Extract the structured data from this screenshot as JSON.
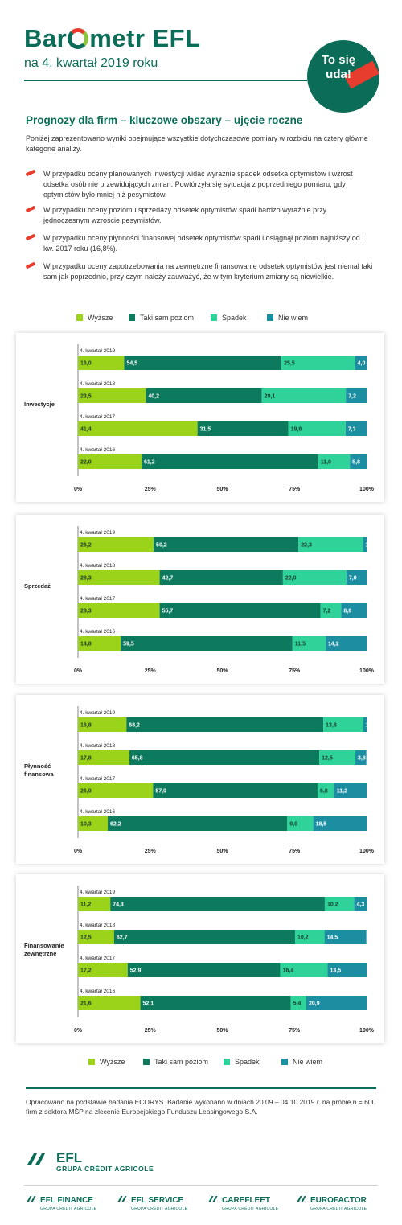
{
  "header": {
    "brand_pre": "Bar",
    "brand_post": "metr EFL",
    "subtitle": "na 4. kwartał 2019 roku",
    "badge_line1": "To się",
    "badge_line2": "uda!"
  },
  "section_title": "Prognozy dla firm – kluczowe obszary – ujęcie roczne",
  "intro": "Poniżej zaprezentowano wyniki obejmujące wszystkie dotychczasowe pomiary w rozbiciu na cztery główne kategorie analizy.",
  "bullets": [
    "W przypadku oceny planowanych inwestycji widać wyraźnie spadek odsetka optymistów i wzrost odsetka osób nie przewidujących zmian. Powtórzyła się sytuacja z poprzedniego pomiaru, gdy optymistów było mniej niż pesymistów.",
    "W przypadku oceny poziomu sprzedaży odsetek optymistów spadł bardzo wyraźnie przy jednoczesnym wzroście pesymistów.",
    "W przypadku oceny płynności finansowej odsetek optymistów spadł i osiągnął poziom najniższy od I kw. 2017 roku (16,8%).",
    "W przypadku oceny zapotrzebowania na zewnętrzne finansowanie odsetek optymistów jest niemal taki sam jak poprzednio, przy czym należy zauważyć, że w tym kryterium zmiany są niewielkie."
  ],
  "legend": {
    "items": [
      "Wyższe",
      "Taki sam poziom",
      "Spadek",
      "Nie wiem"
    ],
    "colors": [
      "#9bd21a",
      "#0d7a5e",
      "#2fd39a",
      "#1b8ea1"
    ]
  },
  "chart_data": [
    {
      "type": "bar",
      "stacked": true,
      "orientation": "horizontal",
      "category": "Inwestycje",
      "categories": [
        "4. kwartał 2019",
        "4. kwartał 2018",
        "4. kwartał 2017",
        "4. kwartał 2016"
      ],
      "series": [
        {
          "name": "Wyższe",
          "values": [
            16.0,
            23.5,
            41.4,
            22.0
          ],
          "labels": [
            "16,0",
            "23,5",
            "41,4",
            "22,0"
          ]
        },
        {
          "name": "Taki sam poziom",
          "values": [
            54.5,
            40.2,
            31.5,
            61.2
          ],
          "labels": [
            "54,5",
            "40,2",
            "31,5",
            "61,2"
          ]
        },
        {
          "name": "Spadek",
          "values": [
            25.5,
            29.1,
            19.8,
            11.0
          ],
          "labels": [
            "25,5",
            "29,1",
            "19,8",
            "11,0"
          ]
        },
        {
          "name": "Nie wiem",
          "values": [
            4.0,
            7.2,
            7.3,
            5.8
          ],
          "labels": [
            "4,0",
            "7,2",
            "7,3",
            "5,8"
          ]
        }
      ],
      "xticks": [
        "0%",
        "25%",
        "50%",
        "75%",
        "100%"
      ],
      "xlim": [
        0,
        100
      ]
    },
    {
      "type": "bar",
      "stacked": true,
      "orientation": "horizontal",
      "category": "Sprzedaż",
      "categories": [
        "4. kwartał 2019",
        "4. kwartał 2018",
        "4. kwartał 2017",
        "4. kwartał 2016"
      ],
      "series": [
        {
          "name": "Wyższe",
          "values": [
            26.2,
            28.3,
            28.3,
            14.8
          ],
          "labels": [
            "26,2",
            "28,3",
            "28,3",
            "14,8"
          ]
        },
        {
          "name": "Taki sam poziom",
          "values": [
            50.2,
            42.7,
            55.7,
            59.5
          ],
          "labels": [
            "50,2",
            "42,7",
            "55,7",
            "59,5"
          ]
        },
        {
          "name": "Spadek",
          "values": [
            22.3,
            22.0,
            7.2,
            11.5
          ],
          "labels": [
            "22,3",
            "22,0",
            "7,2",
            "11,5"
          ]
        },
        {
          "name": "Nie wiem",
          "values": [
            1.3,
            7.0,
            8.8,
            14.2
          ],
          "labels": [
            "1,3",
            "7,0",
            "8,8",
            "14,2"
          ]
        }
      ],
      "xticks": [
        "0%",
        "25%",
        "50%",
        "75%",
        "100%"
      ],
      "xlim": [
        0,
        100
      ]
    },
    {
      "type": "bar",
      "stacked": true,
      "orientation": "horizontal",
      "category": "Płynność finansowa",
      "categories": [
        "4. kwartał 2019",
        "4. kwartał 2018",
        "4. kwartał 2017",
        "4. kwartał 2016"
      ],
      "series": [
        {
          "name": "Wyższe",
          "values": [
            16.8,
            17.8,
            26.0,
            10.3
          ],
          "labels": [
            "16,8",
            "17,8",
            "26,0",
            "10,3"
          ]
        },
        {
          "name": "Taki sam poziom",
          "values": [
            68.2,
            65.8,
            57.0,
            62.2
          ],
          "labels": [
            "68,2",
            "65,8",
            "57,0",
            "62,2"
          ]
        },
        {
          "name": "Spadek",
          "values": [
            13.8,
            12.5,
            5.8,
            9.0
          ],
          "labels": [
            "13,8",
            "12,5",
            "5,8",
            "9,0"
          ]
        },
        {
          "name": "Nie wiem",
          "values": [
            1.2,
            3.8,
            11.2,
            18.5
          ],
          "labels": [
            "1,2",
            "3,8",
            "11,2",
            "18,5"
          ]
        }
      ],
      "xticks": [
        "0%",
        "25%",
        "50%",
        "75%",
        "100%"
      ],
      "xlim": [
        0,
        100
      ]
    },
    {
      "type": "bar",
      "stacked": true,
      "orientation": "horizontal",
      "category": "Finansowanie zewnętrzne",
      "categories": [
        "4. kwartał 2019",
        "4. kwartał 2018",
        "4. kwartał 2017",
        "4. kwartał 2016"
      ],
      "series": [
        {
          "name": "Wyższe",
          "values": [
            11.2,
            12.5,
            17.2,
            21.6
          ],
          "labels": [
            "11,2",
            "12,5",
            "17,2",
            "21,6"
          ]
        },
        {
          "name": "Taki sam poziom",
          "values": [
            74.3,
            62.7,
            52.9,
            52.1
          ],
          "labels": [
            "74,3",
            "62,7",
            "52,9",
            "52,1"
          ]
        },
        {
          "name": "Spadek",
          "values": [
            10.2,
            10.2,
            16.4,
            5.4
          ],
          "labels": [
            "10,2",
            "10,2",
            "16,4",
            "5,4"
          ]
        },
        {
          "name": "Nie wiem",
          "values": [
            4.3,
            14.5,
            13.5,
            20.9
          ],
          "labels": [
            "4,3",
            "14,5",
            "13,5",
            "20,9"
          ]
        }
      ],
      "xticks": [
        "0%",
        "25%",
        "50%",
        "75%",
        "100%"
      ],
      "xlim": [
        0,
        100
      ]
    }
  ],
  "footer": {
    "text": "Opracowano na podstawie badania ECORYS. Badanie wykonano w dniach 20.09 – 04.10.2019 r. na próbie n = 600 firm z sektora MŚP na zlecenie Europejskiego Funduszu Leasingowego S.A.",
    "logo_name": "EFL",
    "logo_group": "GRUPA CRÉDIT AGRICOLE",
    "sub_logos": [
      {
        "name": "EFL FINANCE",
        "group": "GRUPA CRÉDIT AGRICOLE"
      },
      {
        "name": "EFL SERVICE",
        "group": "GRUPA CRÉDIT AGRICOLE"
      },
      {
        "name": "CAREFLEET",
        "group": "GRUPA CRÉDIT AGRICOLE"
      },
      {
        "name": "EUROFACTOR",
        "group": "GRUPA CRÉDIT AGRICOLE"
      }
    ]
  }
}
